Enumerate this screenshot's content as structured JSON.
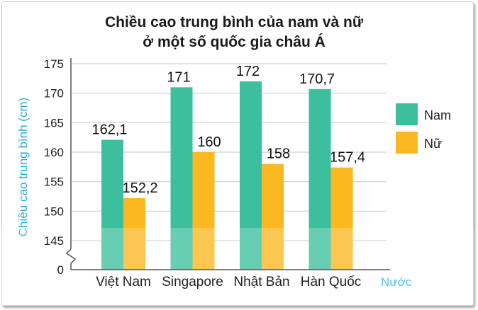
{
  "chart_data": {
    "type": "bar",
    "title": [
      "Chiều cao trung bình của nam và nữ",
      "ở một số quốc gia châu Á"
    ],
    "ylabel": "Chiều cao trung bình (cm)",
    "xlabel": "Nước",
    "categories": [
      "Việt Nam",
      "Singapore",
      "Nhật Bản",
      "Hàn Quốc"
    ],
    "series": [
      {
        "name": "Nam",
        "values": [
          162.1,
          171,
          172,
          170.7
        ],
        "labels": [
          "162,1",
          "171",
          "172",
          "170,7"
        ],
        "color": "#3dbf9e"
      },
      {
        "name": "Nữ",
        "values": [
          152.2,
          160,
          158,
          157.4
        ],
        "labels": [
          "152,2",
          "160",
          "158",
          "157,4"
        ],
        "color": "#fbb820"
      }
    ],
    "yticks": [
      145,
      150,
      155,
      160,
      165,
      170,
      175
    ],
    "ytick_labels": [
      "0",
      "145",
      "150",
      "155",
      "160",
      "165",
      "170",
      "175"
    ],
    "ylim": [
      145,
      175
    ],
    "axis_break": true,
    "grid": true,
    "legend_position": "right"
  }
}
